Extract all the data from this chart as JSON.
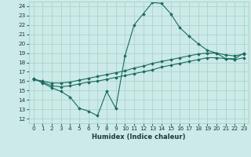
{
  "title": "",
  "xlabel": "Humidex (Indice chaleur)",
  "background_color": "#cceae7",
  "grid_color": "#aad4d0",
  "line_color": "#1a6b60",
  "xlim": [
    -0.5,
    23.5
  ],
  "ylim": [
    11.5,
    24.5
  ],
  "yticks": [
    12,
    13,
    14,
    15,
    16,
    17,
    18,
    19,
    20,
    21,
    22,
    23,
    24
  ],
  "xticks": [
    0,
    1,
    2,
    3,
    4,
    5,
    6,
    7,
    8,
    9,
    10,
    11,
    12,
    13,
    14,
    15,
    16,
    17,
    18,
    19,
    20,
    21,
    22,
    23
  ],
  "line1_x": [
    0,
    1,
    2,
    3,
    4,
    5,
    6,
    7,
    8,
    9,
    10,
    11,
    12,
    13,
    14,
    15,
    16,
    17,
    18,
    19,
    20,
    21,
    22,
    23
  ],
  "line1_y": [
    16.3,
    15.8,
    15.3,
    14.9,
    14.3,
    13.1,
    12.8,
    12.3,
    14.9,
    13.1,
    18.7,
    22.0,
    23.2,
    24.4,
    24.3,
    23.2,
    21.7,
    20.8,
    20.0,
    19.3,
    19.0,
    18.4,
    18.4,
    19.0
  ],
  "line2_x": [
    0,
    1,
    2,
    3,
    4,
    5,
    6,
    7,
    8,
    9,
    10,
    11,
    12,
    13,
    14,
    15,
    16,
    17,
    18,
    19,
    20,
    21,
    22,
    23
  ],
  "line2_y": [
    16.2,
    16.0,
    15.8,
    15.8,
    15.9,
    16.1,
    16.3,
    16.5,
    16.7,
    16.9,
    17.1,
    17.4,
    17.6,
    17.9,
    18.1,
    18.3,
    18.5,
    18.7,
    18.9,
    19.0,
    19.0,
    18.8,
    18.7,
    18.9
  ],
  "line3_x": [
    0,
    1,
    2,
    3,
    4,
    5,
    6,
    7,
    8,
    9,
    10,
    11,
    12,
    13,
    14,
    15,
    16,
    17,
    18,
    19,
    20,
    21,
    22,
    23
  ],
  "line3_y": [
    16.2,
    15.9,
    15.5,
    15.4,
    15.5,
    15.7,
    15.9,
    16.0,
    16.2,
    16.4,
    16.6,
    16.8,
    17.0,
    17.2,
    17.5,
    17.7,
    17.9,
    18.1,
    18.3,
    18.5,
    18.5,
    18.4,
    18.3,
    18.5
  ],
  "marker": "D",
  "markersize": 1.8,
  "linewidth": 0.8,
  "tick_fontsize": 5.2,
  "xlabel_fontsize": 6.0
}
